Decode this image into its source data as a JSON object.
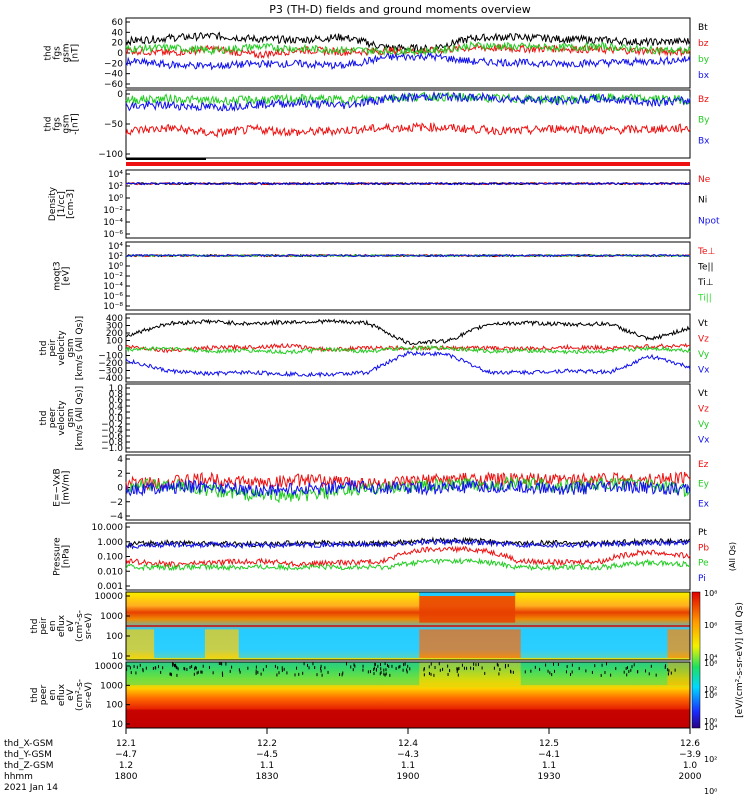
{
  "title": "P3 (TH-D) fields and ground moments overview",
  "date": "2021 Jan 14",
  "colors": {
    "black": "#000000",
    "red": "#ee1111",
    "green": "#22cc22",
    "blue": "#1111ee",
    "lime": "#33dd33"
  },
  "panels": [
    {
      "id": "fgs",
      "ylabel": [
        "thd",
        "fgs",
        "gsm",
        "[nT]"
      ],
      "ticks": [
        "60",
        "40",
        "20",
        "0",
        "−20",
        "−40",
        "−60"
      ],
      "legend": [
        {
          "t": "Bt",
          "c": "black"
        },
        {
          "t": "bz",
          "c": "red"
        },
        {
          "t": "by",
          "c": "green"
        },
        {
          "t": "bx",
          "c": "blue"
        }
      ]
    },
    {
      "id": "fgs2",
      "ylabel": [
        "thd",
        "fgs",
        "gsm",
        "-[nT]"
      ],
      "ticks": [
        "0",
        "−50",
        "−100"
      ],
      "legend": [
        {
          "t": "Bz",
          "c": "red"
        },
        {
          "t": "By",
          "c": "green"
        },
        {
          "t": "Bx",
          "c": "blue"
        }
      ]
    },
    {
      "id": "density",
      "ylabel": [
        "Density",
        "[1/cc]",
        "[cm-3]"
      ],
      "ticks": [
        "10⁴",
        "10²",
        "10⁰",
        "10⁻²",
        "10⁻⁴",
        "10⁻⁶"
      ],
      "legend": [
        {
          "t": "Ne",
          "c": "red"
        },
        {
          "t": "Ni",
          "c": "black"
        },
        {
          "t": "Npot",
          "c": "blue"
        }
      ]
    },
    {
      "id": "temp",
      "ylabel": [
        "moqt3",
        "[eV]"
      ],
      "ticks": [
        "10⁴",
        "10²",
        "10⁰",
        "10⁻²",
        "10⁻⁴",
        "10⁻⁶",
        "10⁻⁸"
      ],
      "legend": [
        {
          "t": "Te⊥",
          "c": "red"
        },
        {
          "t": "Te||",
          "c": "black"
        },
        {
          "t": "Ti⊥",
          "c": "black"
        },
        {
          "t": "Ti||",
          "c": "lime"
        }
      ]
    },
    {
      "id": "peirvel",
      "ylabel": [
        "thd",
        "peir",
        "velocity",
        "gsm",
        "[km/s (All Qs)]"
      ],
      "ticks": [
        "400",
        "300",
        "200",
        "100",
        "0",
        "−100",
        "−200",
        "−300",
        "−400"
      ],
      "legend": [
        {
          "t": "Vt",
          "c": "black"
        },
        {
          "t": "Vz",
          "c": "red"
        },
        {
          "t": "Vy",
          "c": "green"
        },
        {
          "t": "Vx",
          "c": "blue"
        }
      ]
    },
    {
      "id": "peervel",
      "ylabel": [
        "thd",
        "peer",
        "velocity",
        "gsm",
        "[km/s (All Qs)]"
      ],
      "ticks": [
        "1.0",
        "0.8",
        "0.6",
        "0.4",
        "0.2",
        "0.0",
        "−0.2",
        "−0.4",
        "−0.6",
        "−0.8",
        "−1.0"
      ],
      "legend": [
        {
          "t": "Vt",
          "c": "black"
        },
        {
          "t": "Vz",
          "c": "red"
        },
        {
          "t": "Vy",
          "c": "green"
        },
        {
          "t": "Vx",
          "c": "blue"
        }
      ]
    },
    {
      "id": "efield",
      "ylabel": [
        "E=−VxB",
        "[mV/m]"
      ],
      "ticks": [
        "4",
        "2",
        "0",
        "−2",
        "−4"
      ],
      "legend": [
        {
          "t": "Ez",
          "c": "red"
        },
        {
          "t": "Ey",
          "c": "green"
        },
        {
          "t": "Ex",
          "c": "blue"
        }
      ]
    },
    {
      "id": "pressure",
      "ylabel": [
        "Pressure",
        "[nPa]"
      ],
      "ticks": [
        "10.000",
        "1.000",
        "0.100",
        "0.010",
        "0.001"
      ],
      "legend": [
        {
          "t": "Pt",
          "c": "black"
        },
        {
          "t": "Pb",
          "c": "red"
        },
        {
          "t": "Pe",
          "c": "green"
        },
        {
          "t": "Pi",
          "c": "blue"
        }
      ],
      "rlabel": "(All Qs)"
    },
    {
      "id": "peirspec",
      "ylabel": [
        "thd",
        "peir",
        "en",
        "eflux",
        "eV",
        "(cm²-s-",
        "sr-eV)"
      ],
      "ticks": [
        "10000",
        "1000",
        "100",
        "10"
      ]
    },
    {
      "id": "peerspec",
      "ylabel": [
        "thd",
        "peer",
        "en",
        "eflux",
        "eV",
        "(cm²-s-",
        "sr-eV)"
      ],
      "ticks": [
        "10000",
        "1000",
        "100",
        "10"
      ]
    }
  ],
  "colorbar": {
    "ticks": [
      "10⁸",
      "10⁶",
      "10⁴",
      "10²",
      "10⁰"
    ],
    "label": "[eV/(cm²-s-sr-eV)] (All Qs)"
  },
  "footer": {
    "rows": [
      {
        "label": "thd_X-GSM",
        "vals": [
          "12.1",
          "12.2",
          "12.4",
          "12.5",
          "12.6"
        ]
      },
      {
        "label": "thd_Y-GSM",
        "vals": [
          "−4.7",
          "−4.5",
          "−4.3",
          "−4.1",
          "−3.9"
        ]
      },
      {
        "label": "thd_Z-GSM",
        "vals": [
          "1.2",
          "1.1",
          "1.1",
          "1.1",
          "1.0"
        ]
      },
      {
        "label": "hhmm",
        "vals": [
          "1800",
          "1830",
          "1900",
          "1930",
          "2000"
        ]
      }
    ]
  },
  "chart_data": {
    "type": "line",
    "title": "P3 (TH-D) fields and ground moments overview",
    "x_label": "hhmm",
    "x_ticks": [
      "1800",
      "1830",
      "1900",
      "1930",
      "2000"
    ],
    "x_range": [
      "1800",
      "2000"
    ],
    "series": [
      {
        "name": "Bt",
        "panel": "fgs",
        "values": [
          22,
          28,
          32,
          26,
          24,
          30,
          10,
          8,
          28,
          30,
          26,
          24,
          20,
          22
        ]
      },
      {
        "name": "bz",
        "panel": "fgs",
        "values": [
          5,
          0,
          8,
          -4,
          6,
          2,
          4,
          4,
          10,
          8,
          8,
          6,
          4,
          2
        ]
      },
      {
        "name": "by",
        "panel": "fgs",
        "values": [
          8,
          10,
          4,
          12,
          8,
          6,
          4,
          3,
          14,
          12,
          10,
          12,
          6,
          4
        ]
      },
      {
        "name": "bx",
        "panel": "fgs",
        "values": [
          -15,
          -22,
          -24,
          -20,
          -20,
          -24,
          -8,
          -6,
          -16,
          -18,
          -20,
          -18,
          -16,
          -12
        ]
      },
      {
        "name": "Bz",
        "panel": "fgs2",
        "values": [
          -65,
          -60,
          -70,
          -62,
          -68,
          -64,
          -60,
          -58,
          -62,
          -66,
          -60,
          -64,
          -62,
          -60
        ]
      },
      {
        "name": "By",
        "panel": "fgs2",
        "values": [
          -8,
          -6,
          -10,
          -8,
          -6,
          -8,
          -4,
          -2,
          -4,
          -6,
          -8,
          -4,
          -6,
          -8
        ]
      },
      {
        "name": "Bx",
        "panel": "fgs2",
        "values": [
          -20,
          -18,
          -22,
          -16,
          -14,
          -18,
          -6,
          -2,
          -4,
          -6,
          -10,
          -6,
          -12,
          -10
        ]
      },
      {
        "name": "Vt",
        "panel": "peirvel",
        "values": [
          150,
          300,
          330,
          300,
          320,
          330,
          310,
          60,
          90,
          300,
          310,
          290,
          300,
          100,
          250
        ]
      },
      {
        "name": "Vz",
        "panel": "peirvel",
        "values": [
          20,
          -30,
          0,
          10,
          30,
          -20,
          0,
          0,
          0,
          0,
          -10,
          10,
          0,
          20,
          30
        ]
      },
      {
        "name": "Vy",
        "panel": "peirvel",
        "values": [
          -20,
          0,
          -40,
          -30,
          -50,
          -20,
          -40,
          0,
          0,
          -40,
          -30,
          -50,
          -40,
          0,
          -30
        ]
      },
      {
        "name": "Vx",
        "panel": "peirvel",
        "values": [
          -150,
          -280,
          -320,
          -300,
          -320,
          -330,
          -300,
          -60,
          -80,
          -300,
          -300,
          -280,
          -300,
          -100,
          -240
        ]
      },
      {
        "name": "Ez",
        "panel": "efield",
        "values": [
          0.5,
          0.8,
          1.2,
          0.6,
          1.0,
          0.8,
          0.5,
          1.0,
          1.2,
          1.1,
          1.0,
          1.3,
          1.0,
          1.5
        ]
      },
      {
        "name": "Ey",
        "panel": "efield",
        "values": [
          0.2,
          0.4,
          -0.5,
          -1.0,
          -1.2,
          -0.5,
          0.0,
          0.3,
          0.4,
          0.6,
          0.2,
          0.5,
          0.6,
          -0.5
        ]
      },
      {
        "name": "Ex",
        "panel": "efield",
        "values": [
          -0.2,
          0,
          0.2,
          -0.4,
          -0.2,
          0.1,
          0,
          -0.1,
          0,
          0.1,
          -0.2,
          0,
          0,
          -0.3
        ]
      },
      {
        "name": "Pt",
        "panel": "pressure",
        "values": [
          0.6,
          0.8,
          0.7,
          0.6,
          0.8,
          0.7,
          0.7,
          1.1,
          1.1,
          0.7,
          0.8,
          0.7,
          1.0,
          1.0
        ]
      },
      {
        "name": "Pb",
        "panel": "pressure",
        "values": [
          0.05,
          0.03,
          0.04,
          0.05,
          0.03,
          0.04,
          0.05,
          0.3,
          0.3,
          0.05,
          0.04,
          0.05,
          0.2,
          0.1
        ]
      },
      {
        "name": "Pe",
        "panel": "pressure",
        "values": [
          0.02,
          0.02,
          0.02,
          0.02,
          0.02,
          0.02,
          0.02,
          0.05,
          0.05,
          0.02,
          0.02,
          0.02,
          0.04,
          0.03
        ]
      },
      {
        "name": "Pi",
        "panel": "pressure",
        "values": [
          0.5,
          0.6,
          0.6,
          0.5,
          0.6,
          0.6,
          0.6,
          0.9,
          0.9,
          0.6,
          0.6,
          0.6,
          0.8,
          0.8
        ]
      }
    ]
  }
}
